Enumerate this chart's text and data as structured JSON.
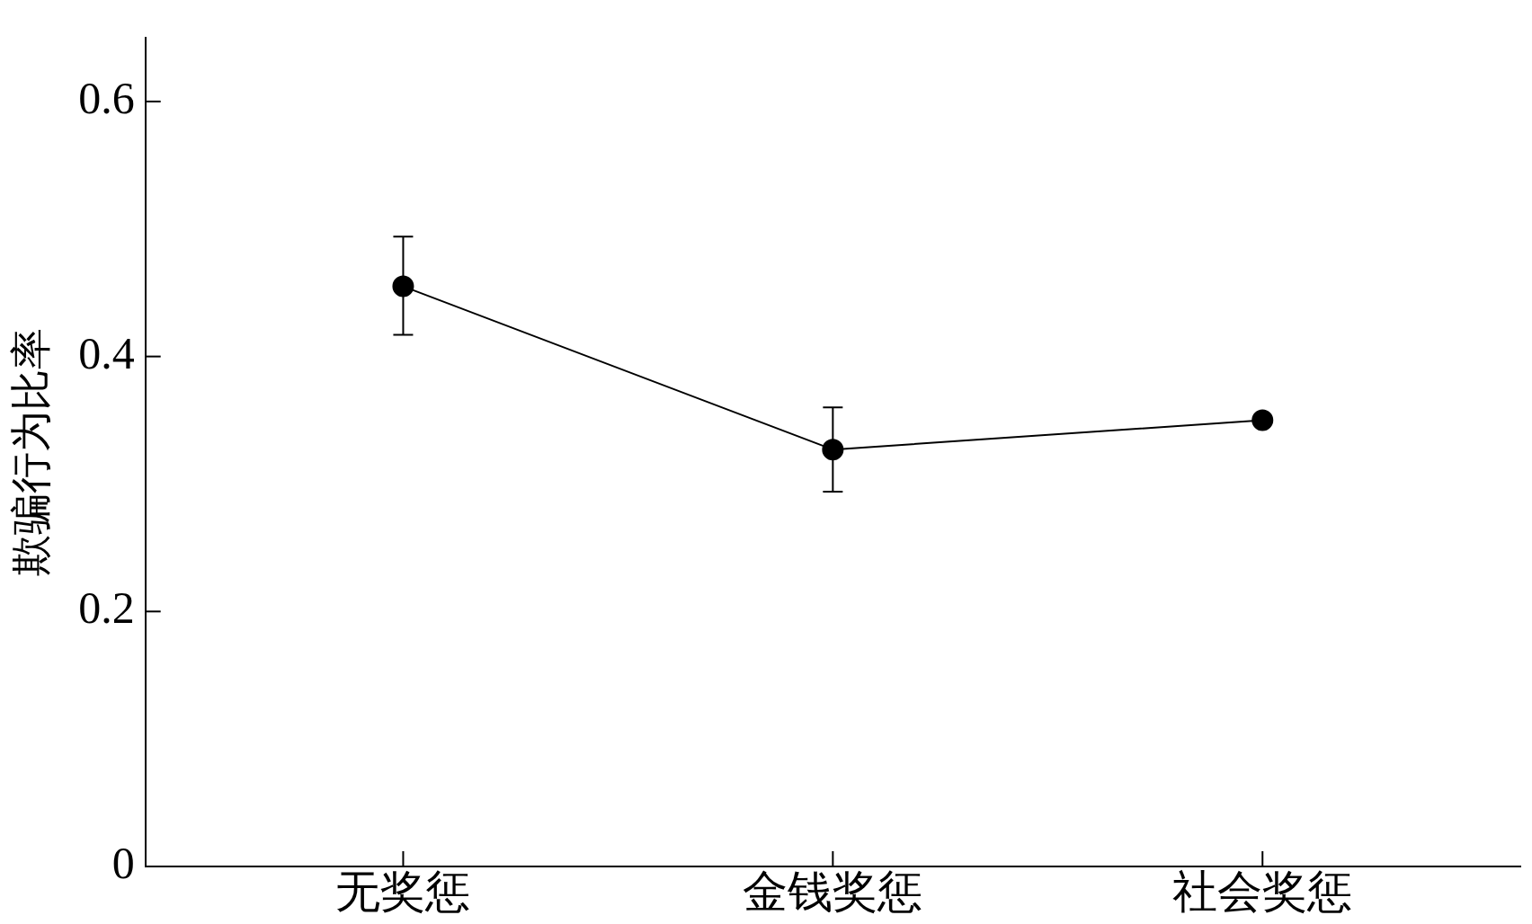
{
  "chart_data": {
    "type": "line",
    "ylabel": "欺骗行为比率",
    "categories": [
      "无奖惩",
      "金钱奖惩",
      "社会奖惩"
    ],
    "series": [
      {
        "color": "#000000",
        "values": [
          0.455,
          0.327,
          0.35
        ],
        "errors": [
          [
            0.417,
            0.494
          ],
          [
            0.294,
            0.36
          ],
          null
        ]
      }
    ],
    "ylim": [
      0,
      0.65
    ],
    "yticks": [
      0,
      0.2,
      0.4,
      0.6
    ],
    "grid": false,
    "legend": false,
    "marker": "circle",
    "line_style": "solid"
  }
}
